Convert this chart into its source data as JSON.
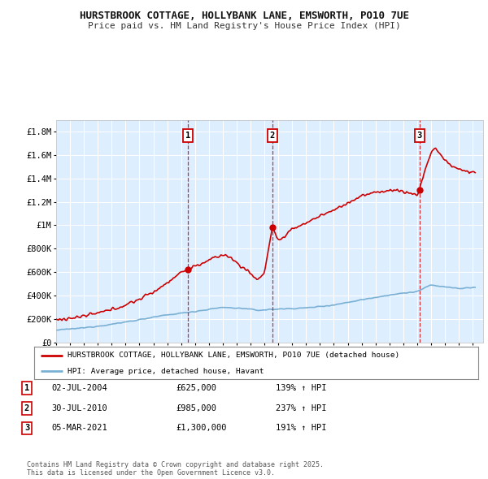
{
  "title_line1": "HURSTBROOK COTTAGE, HOLLYBANK LANE, EMSWORTH, PO10 7UE",
  "title_line2": "Price paid vs. HM Land Registry's House Price Index (HPI)",
  "ylabel_ticks": [
    "£0",
    "£200K",
    "£400K",
    "£600K",
    "£800K",
    "£1M",
    "£1.2M",
    "£1.4M",
    "£1.6M",
    "£1.8M"
  ],
  "ylabel_values": [
    0,
    200000,
    400000,
    600000,
    800000,
    1000000,
    1200000,
    1400000,
    1600000,
    1800000
  ],
  "ylim": [
    0,
    1900000
  ],
  "xlim_start": 1995.25,
  "xlim_end": 2025.75,
  "sale_markers": [
    {
      "year": 2004.5,
      "price": 625000,
      "label": "1"
    },
    {
      "year": 2010.58,
      "price": 985000,
      "label": "2"
    },
    {
      "year": 2021.17,
      "price": 1300000,
      "label": "3"
    }
  ],
  "legend_line1": "HURSTBROOK COTTAGE, HOLLYBANK LANE, EMSWORTH, PO10 7UE (detached house)",
  "legend_line2": "HPI: Average price, detached house, Havant",
  "table_rows": [
    {
      "num": "1",
      "date": "02-JUL-2004",
      "price": "£625,000",
      "hpi": "139% ↑ HPI"
    },
    {
      "num": "2",
      "date": "30-JUL-2010",
      "price": "£985,000",
      "hpi": "237% ↑ HPI"
    },
    {
      "num": "3",
      "date": "05-MAR-2021",
      "price": "£1,300,000",
      "hpi": "191% ↑ HPI"
    }
  ],
  "footer": "Contains HM Land Registry data © Crown copyright and database right 2025.\nThis data is licensed under the Open Government Licence v3.0.",
  "red_line_color": "#cc0000",
  "hpi_line_color": "#7ab0d4",
  "plot_bg": "#ddeeff",
  "grid_color": "#ffffff"
}
